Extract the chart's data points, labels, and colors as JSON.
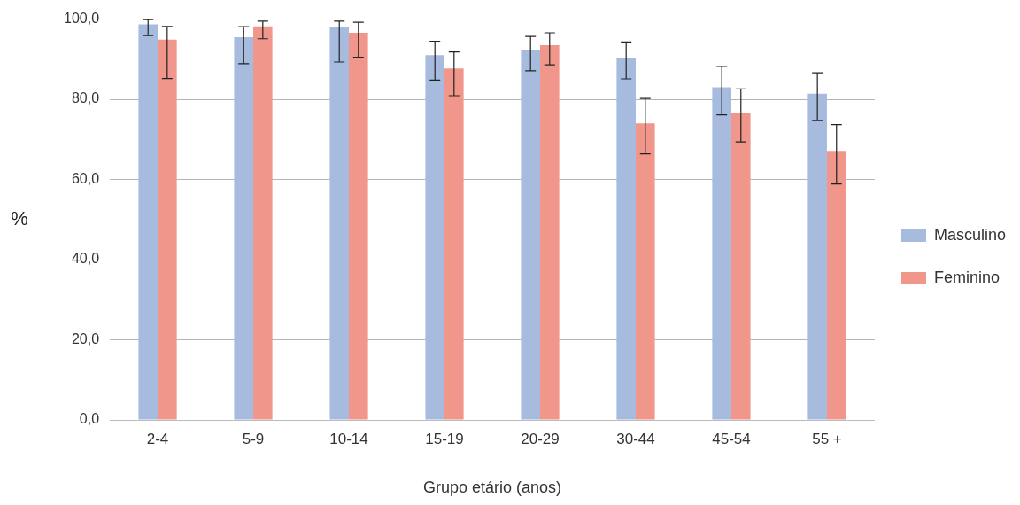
{
  "chart_data": {
    "type": "bar",
    "xlabel": "Grupo etário (anos)",
    "ylabel": "%",
    "categories": [
      "2-4",
      "5-9",
      "10-14",
      "15-19",
      "20-29",
      "30-44",
      "45-54",
      "55 +"
    ],
    "series": [
      {
        "name": "Masculino",
        "color": "#a7bbde",
        "values": [
          98.7,
          95.5,
          98.0,
          91.0,
          92.4,
          90.4,
          83.0,
          81.4
        ],
        "errors": [
          [
            95.9,
            99.9
          ],
          [
            88.9,
            98.1
          ],
          [
            89.3,
            99.5
          ],
          [
            84.8,
            94.5
          ],
          [
            87.1,
            95.7
          ],
          [
            85.1,
            94.3
          ],
          [
            76.1,
            88.2
          ],
          [
            74.7,
            86.6
          ]
        ]
      },
      {
        "name": "Feminino",
        "color": "#f0968a",
        "values": [
          94.9,
          98.2,
          96.6,
          87.7,
          93.5,
          74.0,
          76.5,
          66.9
        ],
        "errors": [
          [
            85.2,
            98.2
          ],
          [
            95.1,
            99.5
          ],
          [
            90.5,
            99.2
          ],
          [
            80.9,
            91.8
          ],
          [
            88.6,
            96.6
          ],
          [
            66.4,
            80.2
          ],
          [
            69.4,
            82.6
          ],
          [
            58.9,
            73.7
          ]
        ]
      }
    ],
    "ylim": [
      0,
      100
    ],
    "yticks": [
      {
        "value": 0,
        "label": "0,0"
      },
      {
        "value": 20,
        "label": "20,0"
      },
      {
        "value": 40,
        "label": "40,0"
      },
      {
        "value": 60,
        "label": "60,0"
      },
      {
        "value": 80,
        "label": "80,0"
      },
      {
        "value": 100,
        "label": "100,0"
      }
    ],
    "grid": "y",
    "legend": "right"
  }
}
